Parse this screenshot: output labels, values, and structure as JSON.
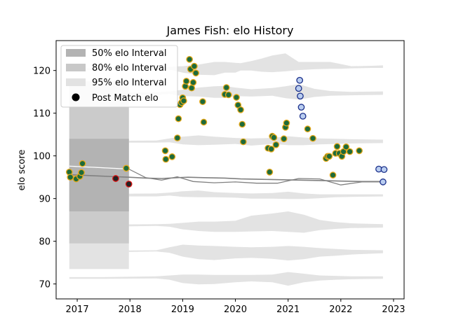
{
  "chart_data": {
    "type": "scatter",
    "title": "James Fish: elo History",
    "xlabel": "",
    "ylabel": "elo score",
    "xlim": [
      2016.6,
      2023.2
    ],
    "ylim": [
      66.5,
      127
    ],
    "x_ticks": [
      2017,
      2018,
      2019,
      2020,
      2021,
      2022,
      2023
    ],
    "x_tick_labels": [
      "2017",
      "2018",
      "2019",
      "2020",
      "2021",
      "2022",
      "2023"
    ],
    "y_ticks": [
      70,
      80,
      90,
      100,
      110,
      120
    ],
    "y_tick_labels": [
      "70",
      "80",
      "90",
      "100",
      "110",
      "120"
    ],
    "grid": false,
    "legend_position": "top-left",
    "legend": [
      {
        "label": "50% elo Interval",
        "kind": "band",
        "color": "#b3b3b3"
      },
      {
        "label": "80% elo Interval",
        "kind": "band",
        "color": "#c8c8c8"
      },
      {
        "label": "95% elo Interval",
        "kind": "band",
        "color": "#e2e2e2"
      },
      {
        "label": "Post Match elo",
        "kind": "marker",
        "color": "#000000"
      }
    ],
    "colors": {
      "band50": "#b3b3b3",
      "band80": "#cbcbcb",
      "band95": "#e3e3e3",
      "mean_line": "#808080",
      "win_fill": "#1e6b3a",
      "win_edge": "#e6a817",
      "loss_fill": "#222222",
      "loss_edge": "#dd1111",
      "recent_fill": "#b9cdf0",
      "recent_edge": "#1a2f8a"
    },
    "initial_interval": {
      "x": [
        2016.85,
        2017.98
      ],
      "band50": [
        87,
        104
      ],
      "band80": [
        79.5,
        111.5
      ],
      "band95": [
        73.5,
        117.5
      ]
    },
    "mean_line": {
      "x": [
        2016.85,
        2017.2,
        2017.6,
        2017.98,
        2018.3,
        2018.6,
        2018.9,
        2019.1,
        2019.4,
        2019.8,
        2020.1,
        2020.5,
        2020.9,
        2021.3,
        2021.7,
        2022.0,
        2022.4,
        2022.8
      ],
      "y": [
        95.6,
        95.4,
        95.2,
        95.0,
        94.8,
        94.7,
        94.9,
        95.0,
        94.9,
        94.8,
        94.6,
        94.5,
        94.4,
        94.3,
        94.2,
        94.1,
        94.0,
        94.0
      ]
    },
    "secondary_line": {
      "x": [
        2016.85,
        2017.3,
        2017.98,
        2018.3,
        2018.6,
        2018.9,
        2019.2,
        2019.6,
        2020.0,
        2020.4,
        2020.8,
        2021.2,
        2021.6,
        2022.0,
        2022.4,
        2022.8
      ],
      "y": [
        97.6,
        97.3,
        96.9,
        94.9,
        94.3,
        95.1,
        94.0,
        93.7,
        93.9,
        93.6,
        93.6,
        94.7,
        94.6,
        93.2,
        93.9,
        93.9
      ]
    },
    "bands": [
      {
        "center": 120.5,
        "x": [
          2016.85,
          2017.5,
          2018.5,
          2018.75,
          2019.0,
          2019.3,
          2019.6,
          2019.8,
          2020.0,
          2020.1,
          2020.3,
          2020.5,
          2020.7,
          2020.95,
          2021.2,
          2021.5,
          2021.8,
          2022.0,
          2022.2,
          2022.6,
          2022.8
        ],
        "lo": [
          120.2,
          120.2,
          120.1,
          120.2,
          119.5,
          119.0,
          118.9,
          119.5,
          119.5,
          120.0,
          120.0,
          119.7,
          119.6,
          119.8,
          120.1,
          120.3,
          120.4,
          120.4,
          120.5,
          120.6,
          120.6
        ],
        "hi": [
          120.5,
          120.5,
          120.5,
          120.9,
          121.0,
          121.4,
          122.0,
          122.0,
          121.8,
          121.7,
          122.2,
          122.8,
          123.5,
          124.0,
          122.0,
          122.0,
          122.0,
          121.5,
          121.0,
          121.1,
          121.2
        ]
      },
      {
        "center": 114.6,
        "x": [
          2016.85,
          2017.5,
          2018.5,
          2018.75,
          2019.0,
          2019.3,
          2019.6,
          2019.8,
          2020.0,
          2020.3,
          2020.7,
          2020.95,
          2021.2,
          2021.5,
          2021.8,
          2022.2,
          2022.8
        ],
        "lo": [
          114.4,
          114.3,
          114.3,
          114.5,
          114.0,
          113.9,
          113.6,
          113.6,
          114.0,
          113.9,
          114.1,
          113.5,
          113.2,
          113.8,
          114.1,
          114.2,
          114.3
        ],
        "hi": [
          114.7,
          114.7,
          114.9,
          115.1,
          115.5,
          116.0,
          116.3,
          116.4,
          116.0,
          115.6,
          115.9,
          116.3,
          116.8,
          115.7,
          115.2,
          115.0,
          115.1
        ]
      },
      {
        "center": 103.3,
        "x": [
          2016.85,
          2017.5,
          2018.5,
          2018.75,
          2019.0,
          2019.3,
          2019.6,
          2020.0,
          2020.3,
          2020.7,
          2021.0,
          2021.3,
          2021.6,
          2021.9,
          2022.2,
          2022.8
        ],
        "lo": [
          103.2,
          103.1,
          103.1,
          103.2,
          102.7,
          102.5,
          102.6,
          102.8,
          102.4,
          102.8,
          102.5,
          102.5,
          102.7,
          102.8,
          102.9,
          103.0
        ],
        "hi": [
          103.5,
          103.5,
          103.6,
          104.1,
          104.5,
          104.8,
          104.5,
          104.2,
          104.1,
          104.2,
          104.6,
          104.3,
          104.1,
          104.0,
          103.9,
          103.8
        ]
      },
      {
        "center": 90.9,
        "x": [
          2016.85,
          2017.5,
          2018.5,
          2018.75,
          2019.0,
          2019.3,
          2019.6,
          2020.0,
          2020.3,
          2020.7,
          2021.0,
          2021.3,
          2021.6,
          2021.9,
          2022.2,
          2022.8
        ],
        "lo": [
          90.6,
          90.5,
          90.5,
          90.7,
          90.4,
          90.3,
          90.3,
          90.2,
          90.0,
          90.0,
          89.9,
          89.9,
          90.1,
          90.3,
          90.4,
          90.5
        ],
        "hi": [
          91.1,
          91.1,
          91.2,
          91.4,
          91.7,
          91.9,
          91.5,
          91.3,
          91.2,
          91.3,
          91.6,
          91.2,
          91.0,
          91.0,
          91.0,
          91.0
        ]
      },
      {
        "center": 83.8,
        "x": [
          2016.85,
          2017.5,
          2018.5,
          2018.75,
          2019.0,
          2019.3,
          2019.6,
          2020.0,
          2020.3,
          2020.7,
          2021.0,
          2021.3,
          2021.6,
          2021.9,
          2022.2,
          2022.8
        ],
        "lo": [
          83.3,
          83.4,
          83.6,
          83.4,
          82.8,
          82.4,
          82.2,
          82.2,
          82.3,
          82.4,
          82.2,
          82.0,
          82.6,
          82.9,
          83.1,
          83.2
        ],
        "hi": [
          83.8,
          83.9,
          84.0,
          84.1,
          84.3,
          84.6,
          84.6,
          84.8,
          86.0,
          86.5,
          87.0,
          86.2,
          85.0,
          84.5,
          84.2,
          84.0
        ]
      },
      {
        "center": 77.6,
        "x": [
          2016.85,
          2017.5,
          2018.5,
          2018.75,
          2019.0,
          2019.3,
          2019.6,
          2020.0,
          2020.3,
          2020.7,
          2021.0,
          2021.3,
          2021.6,
          2021.9,
          2022.2,
          2022.8
        ],
        "lo": [
          77.3,
          77.4,
          77.6,
          77.3,
          76.4,
          75.8,
          75.6,
          76.0,
          76.1,
          75.9,
          75.5,
          75.8,
          76.4,
          76.6,
          76.9,
          77.2
        ],
        "hi": [
          77.8,
          77.8,
          77.9,
          78.6,
          79.2,
          79.0,
          78.9,
          78.7,
          78.6,
          78.7,
          78.9,
          78.7,
          78.4,
          78.2,
          78.0,
          77.9
        ]
      },
      {
        "center": 71.5,
        "x": [
          2016.85,
          2017.5,
          2018.5,
          2018.75,
          2019.0,
          2019.3,
          2019.6,
          2020.0,
          2020.3,
          2020.7,
          2021.0,
          2021.3,
          2021.6,
          2021.9,
          2022.2,
          2022.8
        ],
        "lo": [
          71.2,
          71.2,
          71.3,
          71.0,
          70.2,
          69.9,
          70.0,
          70.4,
          70.6,
          70.4,
          69.6,
          70.4,
          70.8,
          71.0,
          71.1,
          71.2
        ],
        "hi": [
          71.6,
          71.6,
          71.8,
          72.0,
          72.2,
          72.2,
          72.1,
          72.1,
          72.1,
          72.2,
          72.8,
          72.4,
          72.0,
          71.9,
          71.8,
          71.8
        ]
      }
    ],
    "points_win": [
      {
        "x": 2016.85,
        "y": 96.2
      },
      {
        "x": 2016.87,
        "y": 95.0
      },
      {
        "x": 2016.98,
        "y": 94.6
      },
      {
        "x": 2017.05,
        "y": 95.2
      },
      {
        "x": 2017.08,
        "y": 96.1
      },
      {
        "x": 2017.1,
        "y": 98.2
      },
      {
        "x": 2017.93,
        "y": 97.1
      },
      {
        "x": 2018.67,
        "y": 101.2
      },
      {
        "x": 2018.68,
        "y": 99.2
      },
      {
        "x": 2018.8,
        "y": 99.8
      },
      {
        "x": 2018.9,
        "y": 104.2
      },
      {
        "x": 2018.92,
        "y": 108.7
      },
      {
        "x": 2018.95,
        "y": 112.0
      },
      {
        "x": 2018.98,
        "y": 112.5
      },
      {
        "x": 2019.0,
        "y": 113.6
      },
      {
        "x": 2019.02,
        "y": 112.9
      },
      {
        "x": 2019.05,
        "y": 116.3
      },
      {
        "x": 2019.07,
        "y": 117.5
      },
      {
        "x": 2019.13,
        "y": 122.6
      },
      {
        "x": 2019.15,
        "y": 120.3
      },
      {
        "x": 2019.17,
        "y": 115.9
      },
      {
        "x": 2019.2,
        "y": 117.2
      },
      {
        "x": 2019.22,
        "y": 121.0
      },
      {
        "x": 2019.25,
        "y": 119.4
      },
      {
        "x": 2019.38,
        "y": 112.7
      },
      {
        "x": 2019.4,
        "y": 107.9
      },
      {
        "x": 2019.8,
        "y": 114.4
      },
      {
        "x": 2019.83,
        "y": 116.0
      },
      {
        "x": 2019.87,
        "y": 114.3
      },
      {
        "x": 2020.02,
        "y": 113.7
      },
      {
        "x": 2020.05,
        "y": 111.9
      },
      {
        "x": 2020.1,
        "y": 110.8
      },
      {
        "x": 2020.13,
        "y": 107.4
      },
      {
        "x": 2020.15,
        "y": 103.3
      },
      {
        "x": 2020.62,
        "y": 101.8
      },
      {
        "x": 2020.65,
        "y": 96.2
      },
      {
        "x": 2020.68,
        "y": 101.6
      },
      {
        "x": 2020.7,
        "y": 104.6
      },
      {
        "x": 2020.73,
        "y": 104.3
      },
      {
        "x": 2020.77,
        "y": 102.6
      },
      {
        "x": 2020.92,
        "y": 104.0
      },
      {
        "x": 2020.95,
        "y": 106.7
      },
      {
        "x": 2020.97,
        "y": 107.7
      },
      {
        "x": 2021.37,
        "y": 106.3
      },
      {
        "x": 2021.47,
        "y": 104.1
      },
      {
        "x": 2021.72,
        "y": 99.4
      },
      {
        "x": 2021.75,
        "y": 99.9
      },
      {
        "x": 2021.78,
        "y": 99.9
      },
      {
        "x": 2021.85,
        "y": 95.5
      },
      {
        "x": 2021.9,
        "y": 100.6
      },
      {
        "x": 2021.93,
        "y": 102.2
      },
      {
        "x": 2021.97,
        "y": 100.6
      },
      {
        "x": 2022.02,
        "y": 99.9
      },
      {
        "x": 2022.05,
        "y": 101.0
      },
      {
        "x": 2022.1,
        "y": 102.1
      },
      {
        "x": 2022.17,
        "y": 101.0
      },
      {
        "x": 2022.35,
        "y": 101.2
      }
    ],
    "points_loss": [
      {
        "x": 2017.73,
        "y": 94.7
      },
      {
        "x": 2017.98,
        "y": 93.4
      }
    ],
    "points_recent": [
      {
        "x": 2021.2,
        "y": 115.8
      },
      {
        "x": 2021.22,
        "y": 117.7
      },
      {
        "x": 2021.23,
        "y": 114.0
      },
      {
        "x": 2021.25,
        "y": 111.4
      },
      {
        "x": 2021.28,
        "y": 109.3
      },
      {
        "x": 2022.72,
        "y": 96.9
      },
      {
        "x": 2022.8,
        "y": 93.9
      },
      {
        "x": 2022.82,
        "y": 96.8
      }
    ]
  }
}
